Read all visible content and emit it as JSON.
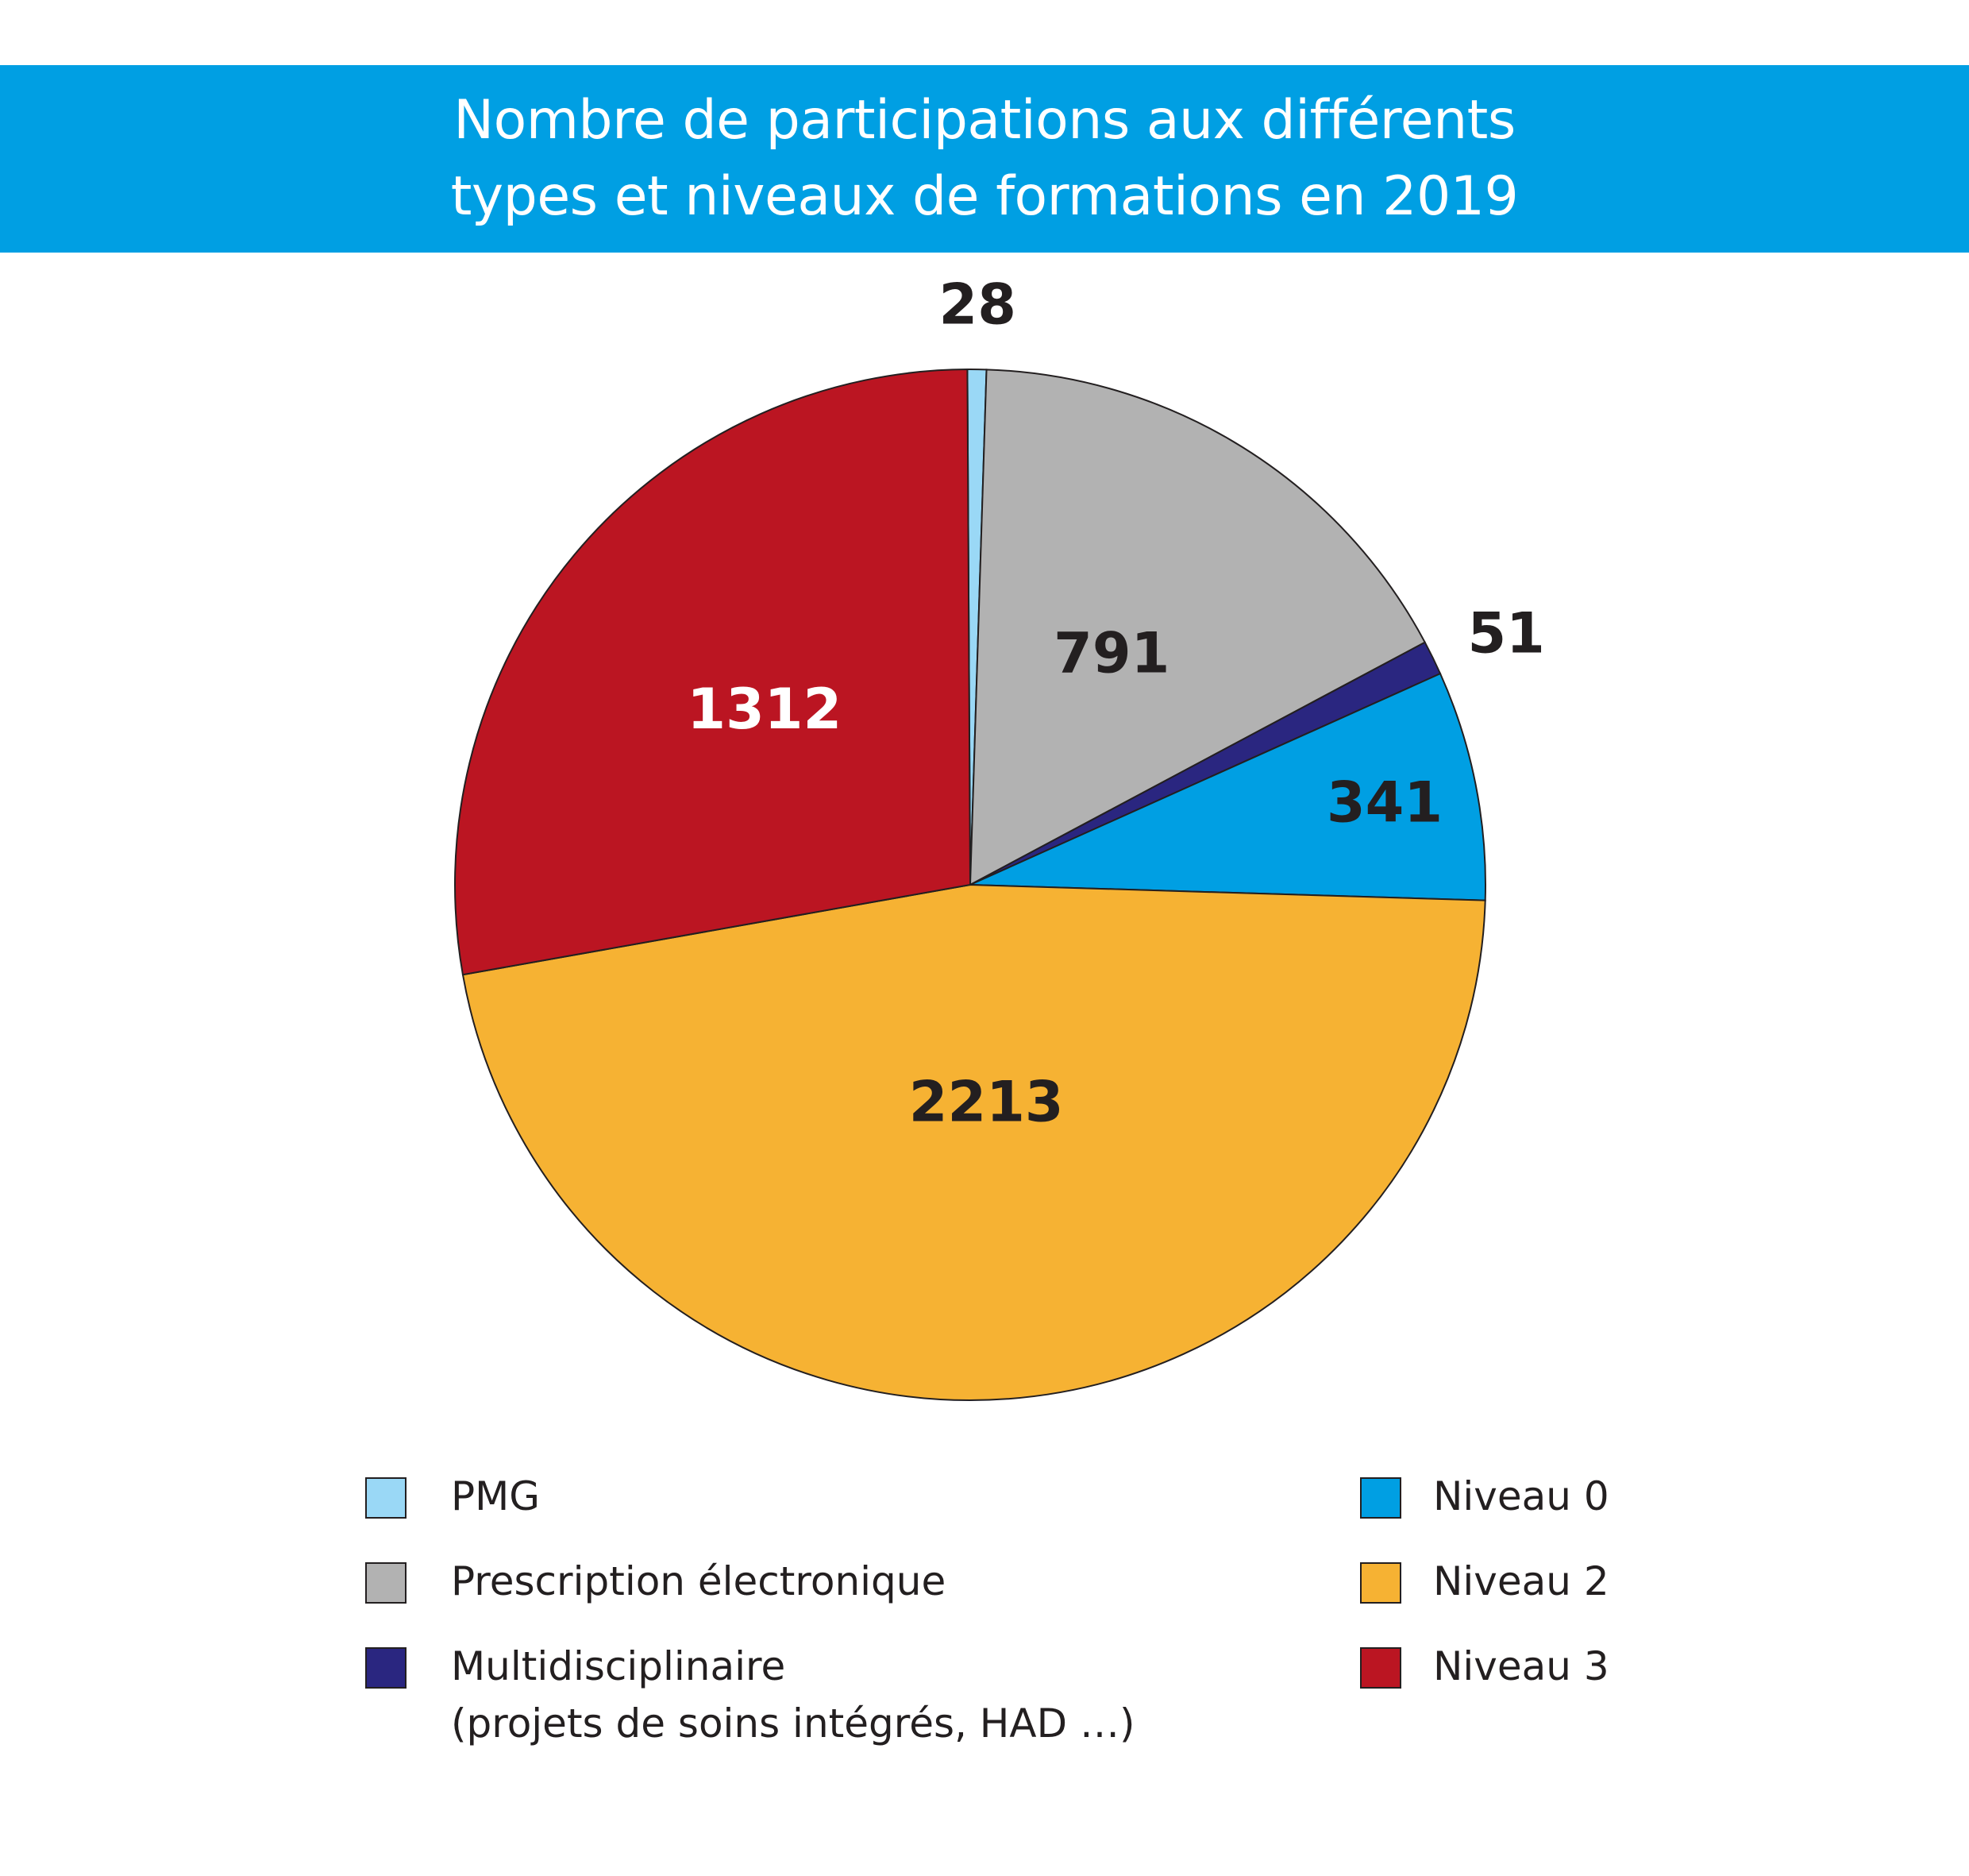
{
  "title": {
    "line1": "Nombre de participations aux différents",
    "line2": "types et niveaux de formations en 2019"
  },
  "colors": {
    "banner": "#009fe3",
    "PMG": "#9ad8f6",
    "Prescription électronique": "#b2b2b2",
    "Multidisciplinaire": "#2a2680",
    "Niveau 0": "#009fe3",
    "Niveau 2": "#f6b233",
    "Niveau 3": "#bb1522"
  },
  "chart_data": {
    "type": "pie",
    "title": "Nombre de participations aux différents types et niveaux de formations en 2019",
    "slices": [
      {
        "label": "PMG",
        "value": 28,
        "color": "#9ad8f6"
      },
      {
        "label": "Prescription électronique",
        "value": 791,
        "color": "#b2b2b2"
      },
      {
        "label": "Multidisciplinaire (projets de soins intégrés, HAD …)",
        "value": 51,
        "color": "#2a2680"
      },
      {
        "label": "Niveau 0",
        "value": 341,
        "color": "#009fe3"
      },
      {
        "label": "Niveau 2",
        "value": 2213,
        "color": "#f6b233"
      },
      {
        "label": "Niveau 3",
        "value": 1312,
        "color": "#bb1522"
      }
    ],
    "data_labels": [
      "28",
      "791",
      "51",
      "341",
      "2213",
      "1312"
    ],
    "legend_placement": "bottom"
  },
  "legend": {
    "left": [
      {
        "label": "PMG",
        "sub": ""
      },
      {
        "label": "Prescription électronique",
        "sub": ""
      },
      {
        "label": "Multidisciplinaire",
        "sub": "(projets de soins intégrés, HAD …)"
      }
    ],
    "right": [
      {
        "label": "Niveau 0"
      },
      {
        "label": "Niveau 2"
      },
      {
        "label": "Niveau 3"
      }
    ]
  }
}
